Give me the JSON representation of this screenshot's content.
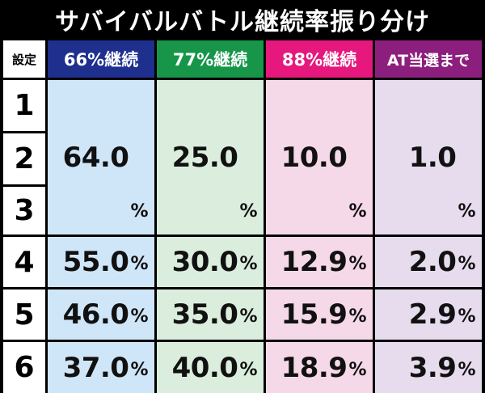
{
  "title": "サバイバルバトル継続率振り分け",
  "headers": {
    "setting": "設定",
    "col66": "66%継続",
    "col77": "77%継続",
    "col88": "88%継続",
    "colAT": "AT当選まで"
  },
  "groups": [
    {
      "settings": [
        "1",
        "2",
        "3"
      ],
      "values": [
        "64.0",
        "25.0",
        "10.0",
        "1.0"
      ]
    },
    {
      "settings": [
        "4"
      ],
      "values": [
        "55.0",
        "30.0",
        "12.9",
        "2.0"
      ]
    },
    {
      "settings": [
        "5"
      ],
      "values": [
        "46.0",
        "35.0",
        "15.9",
        "2.9"
      ]
    },
    {
      "settings": [
        "6"
      ],
      "values": [
        "37.0",
        "40.0",
        "18.9",
        "3.9"
      ]
    }
  ],
  "unit": "%",
  "colors": {
    "header66": "#1f2f8e",
    "header77": "#17964a",
    "header88": "#e6177d",
    "headerAT": "#8c1f7e",
    "cell66": "#cfe6f8",
    "cell77": "#dbeedd",
    "cell88": "#f6d9e8",
    "cellAT": "#e7dcee"
  }
}
